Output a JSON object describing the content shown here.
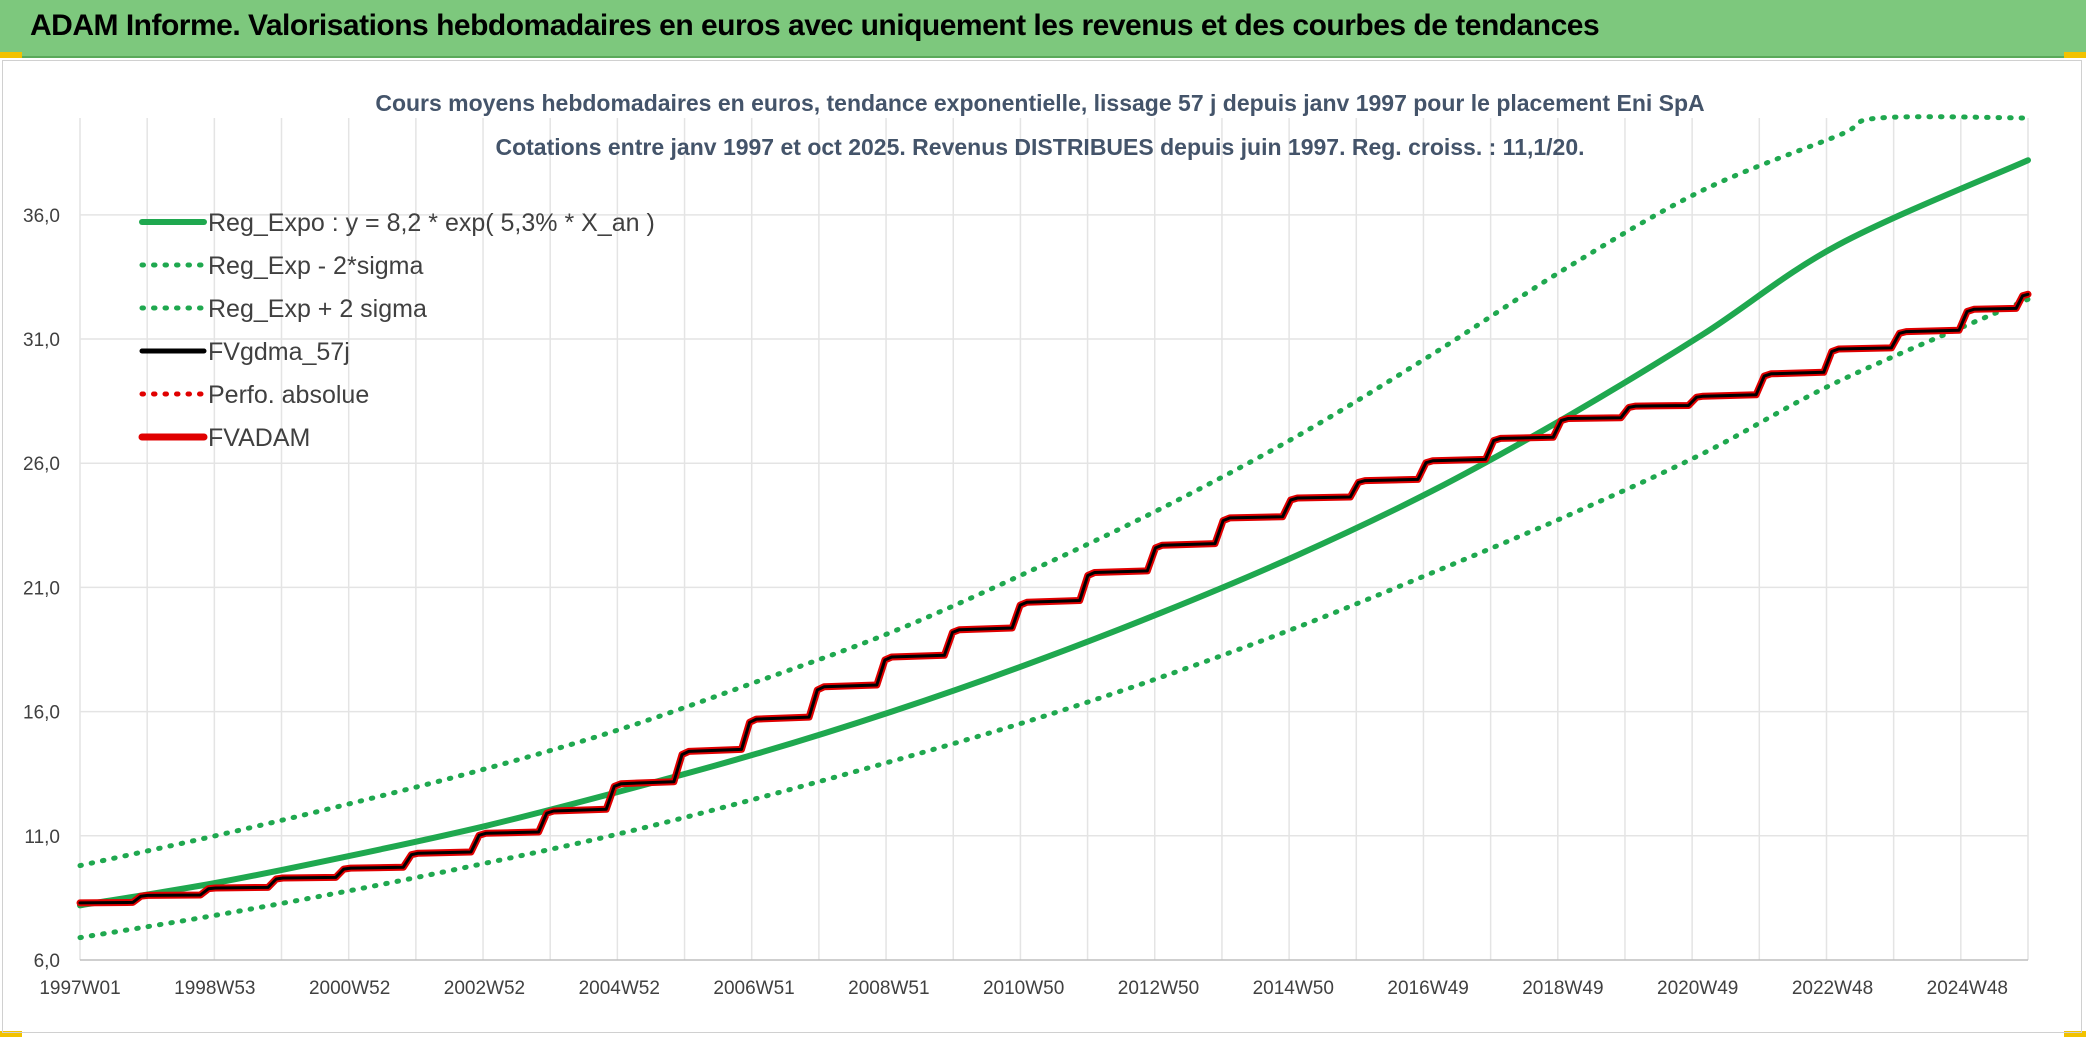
{
  "banner": {
    "title": "ADAM Informe. Valorisations hebdomadaires en euros avec uniquement les revenus et des courbes de tendances"
  },
  "chart_data": {
    "type": "line",
    "title_line1": "Cours moyens hebdomadaires en euros, tendance exponentielle, lissage 57 j depuis janv 1997 pour le placement Eni SpA",
    "title_line2": "Cotations entre janv 1997 et oct 2025. Revenus DISTRIBUES depuis juin 1997. Reg. croiss. : 11,1/20.",
    "x_tick_labels": [
      "1997W01",
      "1998W53",
      "2000W52",
      "2002W52",
      "2004W52",
      "2006W51",
      "2008W51",
      "2010W50",
      "2012W50",
      "2014W50",
      "2016W49",
      "2018W49",
      "2020W49",
      "2022W48",
      "2024W48"
    ],
    "x_range": [
      1997.0,
      2025.8
    ],
    "y_ticks": [
      6.0,
      11.0,
      16.0,
      21.0,
      26.0,
      31.0,
      36.0
    ],
    "y_tick_labels": [
      "6,0",
      "11,0",
      "16,0",
      "21,0",
      "26,0",
      "31,0",
      "36,0"
    ],
    "ylim": [
      6.0,
      39.9
    ],
    "grid": true,
    "legend_position": "top-left",
    "series": [
      {
        "name": "Reg_Expo : y = 8,2 * exp( 5,3% *  X_an )",
        "color": "#1fa84f",
        "style": "solid",
        "x": [
          1997.0,
          1999.0,
          2001.0,
          2003.0,
          2005.0,
          2007.0,
          2009.0,
          2011.0,
          2013.0,
          2015.0,
          2017.0,
          2019.0,
          2021.0,
          2023.0,
          2025.8
        ],
        "y": [
          8.2,
          9.1,
          10.2,
          11.4,
          12.8,
          14.3,
          16.0,
          17.9,
          20.0,
          22.3,
          24.9,
          27.9,
          31.2,
          34.8,
          38.2
        ]
      },
      {
        "name": "Reg_Exp - 2*sigma",
        "color": "#1fa84f",
        "style": "dotted",
        "x": [
          1997.0,
          1999.0,
          2001.0,
          2003.0,
          2005.0,
          2007.0,
          2009.0,
          2011.0,
          2013.0,
          2015.0,
          2017.0,
          2019.0,
          2021.0,
          2023.0,
          2025.8
        ],
        "y": [
          6.9,
          7.8,
          8.8,
          9.9,
          11.1,
          12.5,
          14.0,
          15.6,
          17.4,
          19.4,
          21.6,
          23.9,
          26.4,
          29.3,
          32.6
        ]
      },
      {
        "name": "Reg_Exp + 2 sigma",
        "color": "#1fa84f",
        "style": "dotted",
        "x": [
          1997.0,
          1999.0,
          2001.0,
          2003.0,
          2005.0,
          2007.0,
          2009.0,
          2011.0,
          2013.0,
          2015.0,
          2017.0,
          2019.0,
          2021.0,
          2023.0,
          2023.6,
          2025.8
        ],
        "y": [
          9.8,
          11.0,
          12.3,
          13.7,
          15.3,
          17.2,
          19.2,
          21.6,
          24.2,
          27.1,
          30.4,
          33.9,
          37.0,
          39.2,
          39.9,
          39.9
        ]
      },
      {
        "name": "FVgdma_57j",
        "color": "#000000",
        "style": "solid",
        "x": [
          1997.0,
          1998.0,
          1999.0,
          2000.0,
          2001.0,
          2002.0,
          2003.0,
          2004.0,
          2005.0,
          2006.0,
          2007.0,
          2008.0,
          2009.0,
          2010.0,
          2011.0,
          2012.0,
          2013.0,
          2014.0,
          2015.0,
          2016.0,
          2017.0,
          2018.0,
          2019.0,
          2020.0,
          2021.0,
          2022.0,
          2023.0,
          2024.0,
          2025.0,
          2025.8
        ],
        "y": [
          8.3,
          8.6,
          8.9,
          9.3,
          9.7,
          10.3,
          11.1,
          12.0,
          13.1,
          14.4,
          15.7,
          17.0,
          18.2,
          19.3,
          20.4,
          21.6,
          22.7,
          23.8,
          24.6,
          25.3,
          26.1,
          27.0,
          27.8,
          28.3,
          28.7,
          29.6,
          30.6,
          31.3,
          32.2,
          32.8
        ]
      },
      {
        "name": "Perfo. absolue",
        "color": "#e00000",
        "style": "dotted",
        "x": [
          1997.0,
          1998.0,
          1999.0,
          2000.0,
          2001.0,
          2002.0,
          2003.0,
          2004.0,
          2005.0,
          2006.0,
          2007.0,
          2008.0,
          2009.0,
          2010.0,
          2011.0,
          2012.0,
          2013.0,
          2014.0,
          2015.0,
          2016.0,
          2017.0,
          2018.0,
          2019.0,
          2020.0,
          2021.0,
          2022.0,
          2023.0,
          2024.0,
          2025.0,
          2025.8
        ],
        "y": [
          8.3,
          8.6,
          8.9,
          9.3,
          9.7,
          10.3,
          11.1,
          12.0,
          13.1,
          14.4,
          15.7,
          17.0,
          18.2,
          19.3,
          20.4,
          21.6,
          22.7,
          23.8,
          24.6,
          25.3,
          26.1,
          27.0,
          27.8,
          28.3,
          28.7,
          29.6,
          30.6,
          31.3,
          32.2,
          32.8
        ]
      },
      {
        "name": "FVADAM",
        "color": "#e00000",
        "style": "solid",
        "x": [
          1997.0,
          1998.0,
          1999.0,
          2000.0,
          2001.0,
          2002.0,
          2003.0,
          2004.0,
          2005.0,
          2006.0,
          2007.0,
          2008.0,
          2009.0,
          2010.0,
          2011.0,
          2012.0,
          2013.0,
          2014.0,
          2015.0,
          2016.0,
          2017.0,
          2018.0,
          2019.0,
          2020.0,
          2021.0,
          2022.0,
          2023.0,
          2024.0,
          2025.0,
          2025.8
        ],
        "y": [
          8.3,
          8.6,
          8.9,
          9.3,
          9.7,
          10.3,
          11.1,
          12.0,
          13.1,
          14.4,
          15.7,
          17.0,
          18.2,
          19.3,
          20.4,
          21.6,
          22.7,
          23.8,
          24.6,
          25.3,
          26.1,
          27.0,
          27.8,
          28.3,
          28.7,
          29.6,
          30.6,
          31.3,
          32.2,
          32.8
        ]
      }
    ]
  }
}
